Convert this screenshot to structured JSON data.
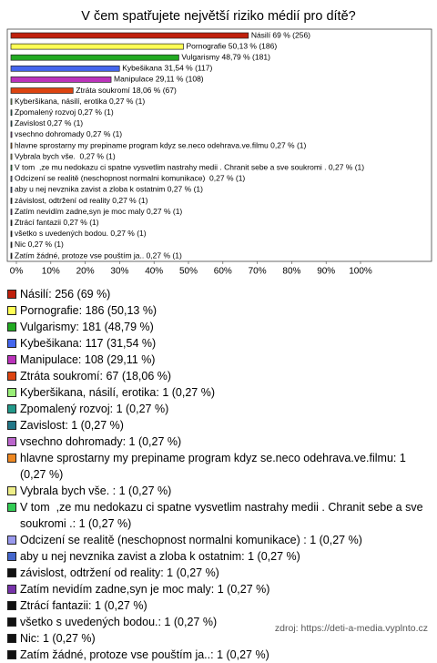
{
  "chart_data": {
    "type": "bar",
    "orientation": "horizontal",
    "title": "V čem spatřujete největší riziko médií pro dítě?",
    "values": [
      69,
      50.13,
      48.79,
      31.54,
      29.11,
      18.06,
      0.27,
      0.27,
      0.27,
      0.27,
      0.27,
      0.27,
      0.27,
      0.27,
      0.27,
      0.27,
      0.27,
      0.27,
      0.27,
      0.27,
      0.27
    ],
    "value_labels": [
      "Násilí 69 % (256)",
      "Pornografie 50,13 % (186)",
      "Vulgarismy 48,79 % (181)",
      "Kybešikana 31,54 % (117)",
      "Manipulace 29,11 % (108)",
      "Ztráta soukromí 18,06 % (67)",
      "Kyberšikana, násilí, erotika 0,27 % (1)",
      "Zpomalený rozvoj 0,27 % (1)",
      "Zavislost 0,27 % (1)",
      "vsechno dohromady 0,27 % (1)",
      "hlavne sprostarny my prepiname program kdyz se.neco odehrava.ve.filmu 0,27 % (1)",
      "Vybrala bych vše.  0,27 % (1)",
      "V tom  ,ze mu nedokazu ci spatne vysvetlim nastrahy medii . Chranit sebe a sve soukromi . 0,27 % (1)",
      "Odcizení se realitě (neschopnost normalni komunikace)  0,27 % (1)",
      "aby u nej nevznika zavist a zloba k ostatnim 0,27 % (1)",
      "závislost, odtržení od reality 0,27 % (1)",
      "Zatím nevidím zadne,syn je moc maly 0,27 % (1)",
      "Ztrácí fantazii 0,27 % (1)",
      "všetko s uvedených bodou. 0,27 % (1)",
      "Nic 0,27 % (1)",
      "Zatím žádné, protoze vse pouštím ja.. 0,27 % (1)"
    ],
    "legend_labels": [
      "Násilí: 256 (69 %)",
      "Pornografie: 186 (50,13 %)",
      "Vulgarismy: 181 (48,79 %)",
      "Kybešikana: 117 (31,54 %)",
      "Manipulace: 108 (29,11 %)",
      "Ztráta soukromí: 67 (18,06 %)",
      "Kyberšikana, násilí, erotika: 1 (0,27 %)",
      "Zpomalený rozvoj: 1 (0,27 %)",
      "Zavislost: 1 (0,27 %)",
      "vsechno dohromady: 1 (0,27 %)",
      "hlavne sprostarny my prepiname program kdyz se.neco odehrava.ve.filmu: 1 (0,27 %)",
      "Vybrala bych vše. : 1 (0,27 %)",
      "V tom  ,ze mu nedokazu ci spatne vysvetlim nastrahy medii . Chranit sebe a sve soukromi .: 1 (0,27 %)",
      "Odcizení se realitě (neschopnost normalni komunikace) : 1 (0,27 %)",
      "aby u nej nevznika zavist a zloba k ostatnim: 1 (0,27 %)",
      "závislost, odtržení od reality: 1 (0,27 %)",
      "Zatím nevidím zadne,syn je moc maly: 1 (0,27 %)",
      "Ztrácí fantazii: 1 (0,27 %)",
      "všetko s uvedených bodou.: 1 (0,27 %)",
      "Nic: 1 (0,27 %)",
      "Zatím žádné, protoze vse pouštím ja..: 1 (0,27 %)"
    ],
    "colors": [
      "#c0200c",
      "#ffff55",
      "#22aa22",
      "#4466ee",
      "#bb33bb",
      "#dd4411",
      "#99ee77",
      "#22998a",
      "#227788",
      "#bb66cc",
      "#ee8822",
      "#eeee88",
      "#33cc55",
      "#9999ee",
      "#4466cc",
      "#111111",
      "#7733aa",
      "#111111",
      "#111111",
      "#111111",
      "#111111"
    ],
    "xlim": [
      0,
      100
    ],
    "xticks": [
      {
        "value": 0,
        "label": "0%"
      },
      {
        "value": 10,
        "label": "10%"
      },
      {
        "value": 20,
        "label": "20%"
      },
      {
        "value": 30,
        "label": "30%"
      },
      {
        "value": 40,
        "label": "40%"
      },
      {
        "value": 50,
        "label": "50%"
      },
      {
        "value": 60,
        "label": "60%"
      },
      {
        "value": 70,
        "label": "70%"
      },
      {
        "value": 80,
        "label": "80%"
      },
      {
        "value": 90,
        "label": "90%"
      },
      {
        "value": 100,
        "label": "100%"
      }
    ],
    "source": "zdroj: https://deti-a-media.vyplnto.cz"
  }
}
